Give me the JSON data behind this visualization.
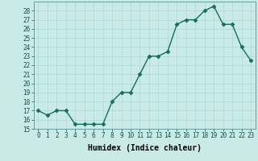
{
  "xlabel": "Humidex (Indice chaleur)",
  "x": [
    0,
    1,
    2,
    3,
    4,
    5,
    6,
    7,
    8,
    9,
    10,
    11,
    12,
    13,
    14,
    15,
    16,
    17,
    18,
    19,
    20,
    21,
    22,
    23
  ],
  "y": [
    17,
    16.5,
    17,
    17,
    15.5,
    15.5,
    15.5,
    15.5,
    18,
    19,
    19,
    21,
    23,
    23,
    23.5,
    26.5,
    27,
    27,
    28,
    28.5,
    26.5,
    26.5,
    24,
    22.5
  ],
  "line_color": "#1a6b5a",
  "marker": "D",
  "marker_size": 2.5,
  "background_color": "#c8ebe8",
  "grid_color": "#b0d8d4",
  "ylim": [
    15,
    29
  ],
  "yticks": [
    15,
    16,
    17,
    18,
    19,
    20,
    21,
    22,
    23,
    24,
    25,
    26,
    27,
    28
  ],
  "xticks": [
    0,
    1,
    2,
    3,
    4,
    5,
    6,
    7,
    8,
    9,
    10,
    11,
    12,
    13,
    14,
    15,
    16,
    17,
    18,
    19,
    20,
    21,
    22,
    23
  ],
  "tick_fontsize": 5.5,
  "label_fontsize": 7,
  "line_width": 1.0
}
